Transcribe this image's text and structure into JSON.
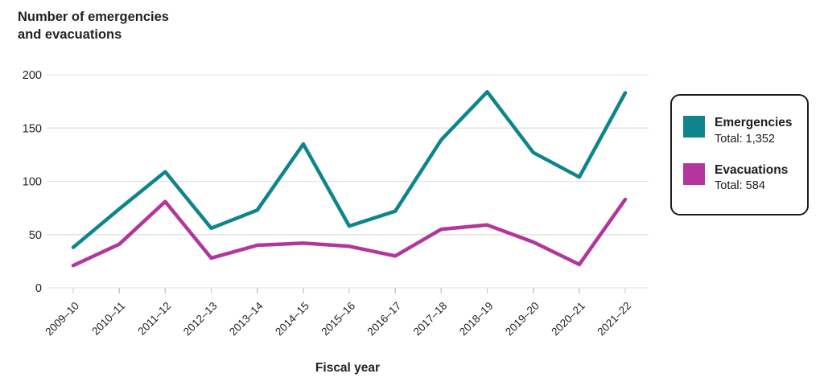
{
  "title": {
    "line1": "Number of emergencies",
    "line2": "and evacuations"
  },
  "x_axis_label": "Fiscal year",
  "colors": {
    "emergencies": "#0d858b",
    "evacuations": "#b4359b",
    "grid": "#e3e3e3",
    "tick": "#c9c9c9",
    "text": "#222222"
  },
  "legend": {
    "items": [
      {
        "label": "Emergencies",
        "total_label": "Total: 1,352",
        "color_key": "emergencies"
      },
      {
        "label": "Evacuations",
        "total_label": "Total: 584",
        "color_key": "evacuations"
      }
    ]
  },
  "chart_data": {
    "type": "line",
    "title": "Number of emergencies and evacuations",
    "xlabel": "Fiscal year",
    "ylabel": "Number of emergencies and evacuations",
    "categories": [
      "2009–10",
      "2010–11",
      "2011–12",
      "2012–13",
      "2013–14",
      "2014–15",
      "2015–16",
      "2016–17",
      "2017–18",
      "2018–19",
      "2019–20",
      "2020–21",
      "2021–22"
    ],
    "series": [
      {
        "name": "Emergencies",
        "total": 1352,
        "color_key": "emergencies",
        "values": [
          38,
          74,
          109,
          56,
          73,
          135,
          58,
          72,
          139,
          184,
          127,
          104,
          183
        ]
      },
      {
        "name": "Evacuations",
        "total": 584,
        "color_key": "evacuations",
        "values": [
          21,
          41,
          81,
          28,
          40,
          42,
          39,
          30,
          55,
          59,
          43,
          22,
          83
        ]
      }
    ],
    "y_ticks": [
      0,
      50,
      100,
      150,
      200
    ],
    "ylim": [
      0,
      200
    ],
    "grid": true,
    "legend_position": "right"
  }
}
